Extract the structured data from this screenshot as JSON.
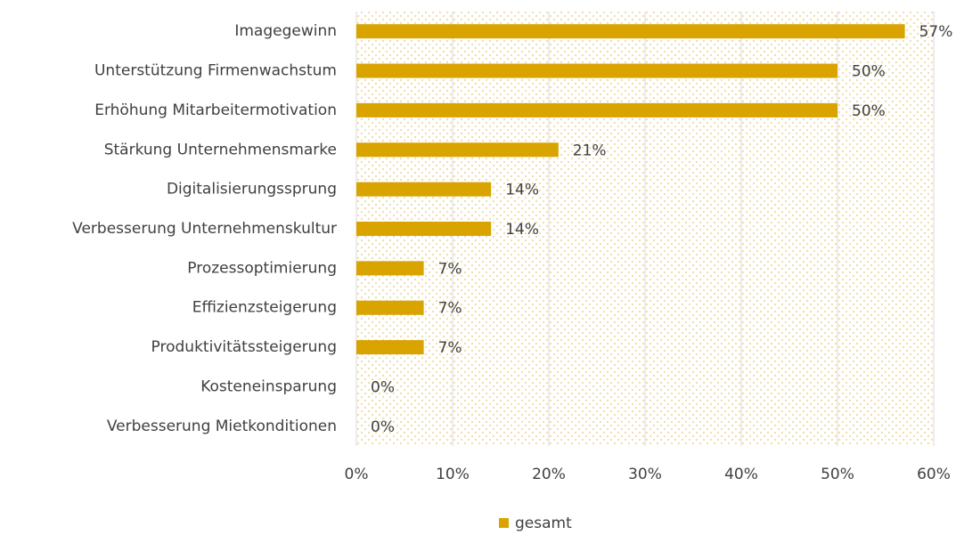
{
  "chart_data": {
    "type": "bar",
    "orientation": "horizontal",
    "categories": [
      "Imagegewinn",
      "Unterstützung Firmenwachstum",
      "Erhöhung Mitarbeitermotivation",
      "Stärkung Unternehmensmarke",
      "Digitalisierungssprung",
      "Verbesserung Unternehmenskultur",
      "Prozessoptimierung",
      "Effizienzsteigerung",
      "Produktivitätssteigerung",
      "Kosteneinsparung",
      "Verbesserung Mietkonditionen"
    ],
    "series": [
      {
        "name": "gesamt",
        "color": "#d9a300",
        "values": [
          57,
          50,
          50,
          21,
          14,
          14,
          7,
          7,
          7,
          0,
          0
        ],
        "value_labels": [
          "57%",
          "50%",
          "50%",
          "21%",
          "14%",
          "14%",
          "7%",
          "7%",
          "7%",
          "0%",
          "0%"
        ]
      }
    ],
    "xlim": [
      0,
      60
    ],
    "xticks": [
      {
        "value": 0,
        "label": "0%"
      },
      {
        "value": 10,
        "label": "10%"
      },
      {
        "value": 20,
        "label": "20%"
      },
      {
        "value": 30,
        "label": "30%"
      },
      {
        "value": 40,
        "label": "40%"
      },
      {
        "value": 50,
        "label": "50%"
      },
      {
        "value": 60,
        "label": "60%"
      }
    ],
    "grid": true,
    "legend": "bottom"
  }
}
